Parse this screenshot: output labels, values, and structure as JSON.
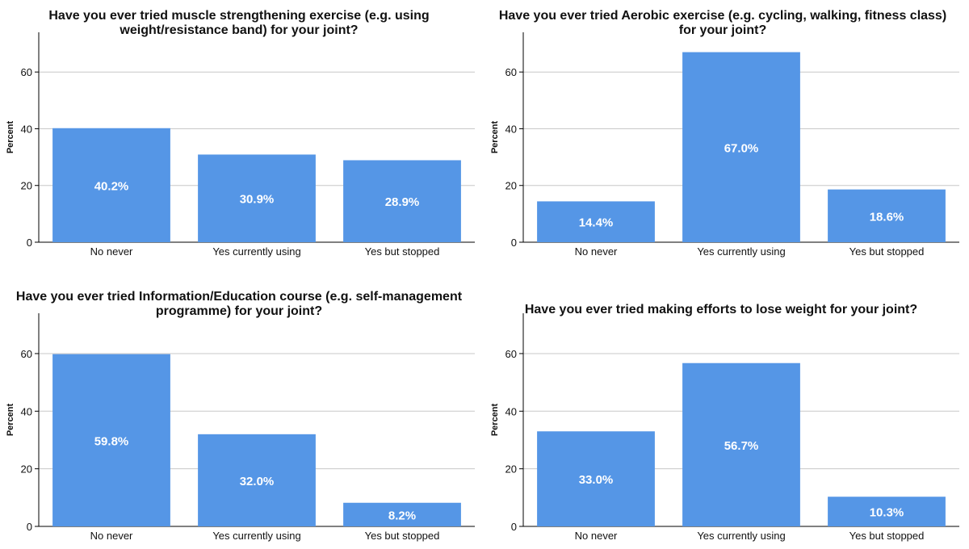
{
  "colors": {
    "bar": "#5596e6",
    "grid": "#c8c8c8",
    "axis": "#000000",
    "label": "#ffffff"
  },
  "chart_data": [
    {
      "type": "bar",
      "title": [
        "Have you ever tried muscle strengthening exercise (e.g. using",
        "weight/resistance band) for your joint?"
      ],
      "categories": [
        "No never",
        "Yes currently using",
        "Yes but stopped"
      ],
      "values": [
        40.2,
        30.9,
        28.9
      ],
      "data_labels": [
        "40.2%",
        "30.9%",
        "28.9%"
      ],
      "ylabel": "Percent",
      "yticks": [
        0,
        20,
        40,
        60
      ],
      "ylim": [
        0,
        74
      ],
      "grid": true
    },
    {
      "type": "bar",
      "title": [
        "Have you ever tried Aerobic exercise (e.g. cycling, walking, fitness class)",
        "for your joint?"
      ],
      "categories": [
        "No never",
        "Yes currently using",
        "Yes but stopped"
      ],
      "values": [
        14.4,
        67.0,
        18.6
      ],
      "data_labels": [
        "14.4%",
        "67.0%",
        "18.6%"
      ],
      "ylabel": "Percent",
      "yticks": [
        0,
        20,
        40,
        60
      ],
      "ylim": [
        0,
        74
      ],
      "grid": true
    },
    {
      "type": "bar",
      "title": [
        "Have you ever tried Information/Education course (e.g. self-management",
        "programme) for your joint?"
      ],
      "categories": [
        "No never",
        "Yes currently using",
        "Yes but stopped"
      ],
      "values": [
        59.8,
        32.0,
        8.2
      ],
      "data_labels": [
        "59.8%",
        "32.0%",
        "8.2%"
      ],
      "ylabel": "Percent",
      "yticks": [
        0,
        20,
        40,
        60
      ],
      "ylim": [
        0,
        74
      ],
      "grid": true
    },
    {
      "type": "bar",
      "title": [
        "Have you ever tried making efforts to lose weight for your joint?"
      ],
      "categories": [
        "No never",
        "Yes currently using",
        "Yes but stopped"
      ],
      "values": [
        33.0,
        56.7,
        10.3
      ],
      "data_labels": [
        "33.0%",
        "56.7%",
        "10.3%"
      ],
      "ylabel": "Percent",
      "yticks": [
        0,
        20,
        40,
        60
      ],
      "ylim": [
        0,
        74
      ],
      "grid": true
    }
  ]
}
